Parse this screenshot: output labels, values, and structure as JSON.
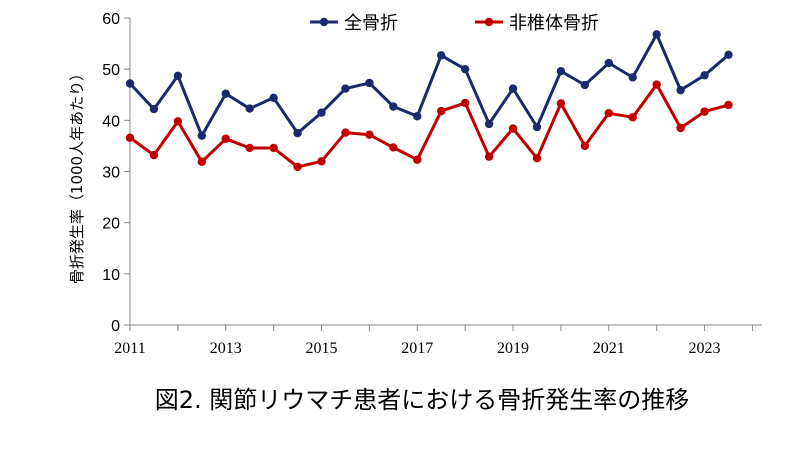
{
  "chart_data": {
    "type": "line",
    "title": "",
    "xlabel": "",
    "ylabel": "骨折発生率（1000人年あたり）",
    "ylim": [
      0,
      60
    ],
    "yticks": [
      0,
      10,
      20,
      30,
      40,
      50,
      60
    ],
    "x_tick_labels": [
      "2011",
      "2013",
      "2015",
      "2017",
      "2019",
      "2021",
      "2023"
    ],
    "xlim": [
      2011.0,
      2024.2
    ],
    "legend_position": "top-center",
    "grid": false,
    "x": [
      2011.0,
      2011.5,
      2012.0,
      2012.5,
      2013.0,
      2013.5,
      2014.0,
      2014.5,
      2015.0,
      2015.5,
      2016.0,
      2016.5,
      2017.0,
      2017.5,
      2018.0,
      2018.5,
      2019.0,
      2019.5,
      2020.0,
      2020.5,
      2021.0,
      2021.5,
      2022.0,
      2022.5,
      2023.0,
      2023.5
    ],
    "series": [
      {
        "name": "全骨折",
        "color": "#1a2a6c",
        "values": [
          47.2,
          42.2,
          48.7,
          37.0,
          45.2,
          42.3,
          44.4,
          37.5,
          41.5,
          46.2,
          47.3,
          42.7,
          40.8,
          52.7,
          50.0,
          39.3,
          46.2,
          38.7,
          49.6,
          46.9,
          51.2,
          48.4,
          56.8,
          45.9,
          48.8,
          52.8
        ]
      },
      {
        "name": "非椎体骨折",
        "color": "#c00000",
        "values": [
          36.6,
          33.2,
          39.8,
          31.9,
          36.4,
          34.6,
          34.6,
          30.9,
          32.0,
          37.6,
          37.2,
          34.7,
          32.3,
          41.8,
          43.4,
          32.9,
          38.4,
          32.6,
          43.3,
          35.0,
          41.4,
          40.6,
          47.0,
          38.5,
          41.7,
          43.0
        ]
      }
    ]
  },
  "caption": "図2. 関節リウマチ患者における骨折発生率の推移"
}
